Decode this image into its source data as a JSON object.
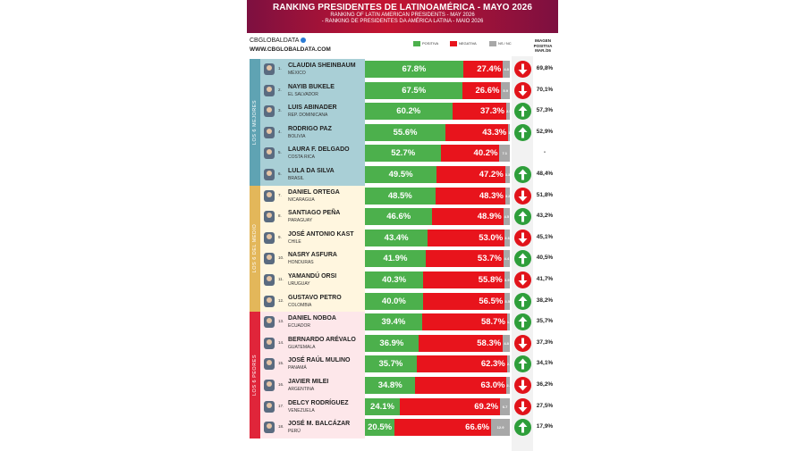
{
  "header": {
    "title": "RANKING PRESIDENTES DE LATINOAMÉRICA - MAYO 2026",
    "subtitle_en": "RANKING OF LATIN AMERICAN PRESIDENTS - MAY 2026",
    "subtitle_pt": "- RANKING DE PRESIDENTES DA AMÉRICA LATINA - MAIO 2026"
  },
  "brand": {
    "name": "CBGLOBALDATA",
    "web": "WWW.CBGLOBALDATA.COM"
  },
  "legend": {
    "positive": "POSITIVA",
    "negative": "NEGATIVA",
    "ns": "NS / NC"
  },
  "image_column_header": [
    "IMAGEN",
    "POSITIVA",
    "MAR./26"
  ],
  "groups": [
    {
      "label": "LOS 6 MEJORES",
      "color": "#a9cfd6",
      "bar": "#5fa3b3"
    },
    {
      "label": "LOS 6 DEL MEDIO",
      "color": "#fff6df",
      "bar": "#e3b75a"
    },
    {
      "label": "LOS 6 PEORES",
      "color": "#fde7ea",
      "bar": "#e0253a"
    }
  ],
  "colors": {
    "positive": "#4cb04c",
    "negative": "#e8141c",
    "ns": "#a8a8a8",
    "up": "#2e9e3a",
    "down": "#e1131a"
  },
  "chart_data": {
    "type": "bar",
    "stacked": true,
    "orientation": "horizontal",
    "title": "RANKING PRESIDENTES DE LATINOAMÉRICA - MAYO 2026",
    "categories": [
      "CLAUDIA SHEINBAUM",
      "NAYIB BUKELE",
      "LUIS ABINADER",
      "RODRIGO PAZ",
      "LAURA F. DELGADO",
      "LULA DA SILVA",
      "DANIEL ORTEGA",
      "SANTIAGO PEÑA",
      "JOSÉ ANTONIO KAST",
      "NASRY ASFURA",
      "YAMANDÚ ORSI",
      "GUSTAVO PETRO",
      "DANIEL NOBOA",
      "BERNARDO ARÉVALO",
      "JOSÉ RAÚL MULINO",
      "JAVIER MILEI",
      "DELCY RODRÍGUEZ",
      "JOSÉ M. BALCÁZAR"
    ],
    "series": [
      {
        "name": "POSITIVA",
        "values": [
          67.8,
          67.5,
          60.2,
          55.6,
          52.7,
          49.5,
          48.5,
          46.6,
          43.4,
          41.9,
          40.3,
          40.0,
          39.4,
          36.9,
          35.7,
          34.8,
          24.1,
          20.5
        ]
      },
      {
        "name": "NEGATIVA",
        "values": [
          27.4,
          26.6,
          37.3,
          43.3,
          40.2,
          47.2,
          48.3,
          48.9,
          53.0,
          53.7,
          55.8,
          56.5,
          58.7,
          58.3,
          62.3,
          63.0,
          69.2,
          66.6
        ]
      },
      {
        "name": "NS / NC",
        "values": [
          4.8,
          5.9,
          2.5,
          1.1,
          7.1,
          3.3,
          3.2,
          4.5,
          3.6,
          4.4,
          3.9,
          3.5,
          1.9,
          4.8,
          2.0,
          2.2,
          6.7,
          12.9
        ]
      }
    ]
  },
  "rows": [
    {
      "rank": "1.",
      "name": "CLAUDIA SHEINBAUM",
      "country": "MÉXICO",
      "pos": "67.8%",
      "neg": "27.4%",
      "ns": "4.8",
      "trend": "down",
      "prev": "69,8%"
    },
    {
      "rank": "2.",
      "name": "NAYIB BUKELE",
      "country": "EL SALVADOR",
      "pos": "67.5%",
      "neg": "26.6%",
      "ns": "5.9",
      "trend": "down",
      "prev": "70,1%"
    },
    {
      "rank": "3.",
      "name": "LUIS ABINADER",
      "country": "REP. DOMINICANA",
      "pos": "60.2%",
      "neg": "37.3%",
      "ns": "2.5",
      "trend": "up",
      "prev": "57,3%"
    },
    {
      "rank": "4.",
      "name": "RODRIGO PAZ",
      "country": "BOLIVIA",
      "pos": "55.6%",
      "neg": "43.3%",
      "ns": "1.1",
      "trend": "up",
      "prev": "52,9%"
    },
    {
      "rank": "5.",
      "name": "LAURA F. DELGADO",
      "country": "COSTA RICA",
      "pos": "52.7%",
      "neg": "40.2%",
      "ns": "7.1",
      "trend": "none",
      "prev": "-"
    },
    {
      "rank": "6.",
      "name": "LULA DA SILVA",
      "country": "BRASIL",
      "pos": "49.5%",
      "neg": "47.2%",
      "ns": "3.3",
      "trend": "up",
      "prev": "48,4%"
    },
    {
      "rank": "7.",
      "name": "DANIEL ORTEGA",
      "country": "NICARAGUA",
      "pos": "48.5%",
      "neg": "48.3%",
      "ns": "3.2",
      "trend": "down",
      "prev": "51,8%"
    },
    {
      "rank": "8.",
      "name": "SANTIAGO PEÑA",
      "country": "PARAGUAY",
      "pos": "46.6%",
      "neg": "48.9%",
      "ns": "4.5",
      "trend": "up",
      "prev": "43,2%"
    },
    {
      "rank": "9.",
      "name": "JOSÉ ANTONIO KAST",
      "country": "CHILE",
      "pos": "43.4%",
      "neg": "53.0%",
      "ns": "3.6",
      "trend": "down",
      "prev": "45,1%"
    },
    {
      "rank": "10.",
      "name": "NASRY ASFURA",
      "country": "HONDURAS",
      "pos": "41.9%",
      "neg": "53.7%",
      "ns": "4.4",
      "trend": "up",
      "prev": "40,5%"
    },
    {
      "rank": "11.",
      "name": "YAMANDÚ ORSI",
      "country": "URUGUAY",
      "pos": "40.3%",
      "neg": "55.8%",
      "ns": "3.9",
      "trend": "down",
      "prev": "41,7%"
    },
    {
      "rank": "12.",
      "name": "GUSTAVO PETRO",
      "country": "COLOMBIA",
      "pos": "40.0%",
      "neg": "56.5%",
      "ns": "3.5",
      "trend": "up",
      "prev": "38,2%"
    },
    {
      "rank": "13.",
      "name": "DANIEL NOBOA",
      "country": "ECUADOR",
      "pos": "39.4%",
      "neg": "58.7%",
      "ns": "1.9",
      "trend": "up",
      "prev": "35,7%"
    },
    {
      "rank": "14.",
      "name": "BERNARDO ARÉVALO",
      "country": "GUATEMALA",
      "pos": "36.9%",
      "neg": "58.3%",
      "ns": "4.8",
      "trend": "down",
      "prev": "37,3%"
    },
    {
      "rank": "15.",
      "name": "JOSÉ RAÚL MULINO",
      "country": "PANAMÁ",
      "pos": "35.7%",
      "neg": "62.3%",
      "ns": "2.0",
      "trend": "up",
      "prev": "34,1%"
    },
    {
      "rank": "16.",
      "name": "JAVIER MILEI",
      "country": "ARGENTINA",
      "pos": "34.8%",
      "neg": "63.0%",
      "ns": "2.2",
      "trend": "down",
      "prev": "36,2%"
    },
    {
      "rank": "17.",
      "name": "DELCY RODRÍGUEZ",
      "country": "VENEZUELA",
      "pos": "24.1%",
      "neg": "69.2%",
      "ns": "6.7",
      "trend": "down",
      "prev": "27,5%"
    },
    {
      "rank": "18.",
      "name": "JOSÉ M. BALCÁZAR",
      "country": "PERÚ",
      "pos": "20.5%",
      "neg": "66.6%",
      "ns": "12.9",
      "trend": "up",
      "prev": "17,9%"
    }
  ]
}
